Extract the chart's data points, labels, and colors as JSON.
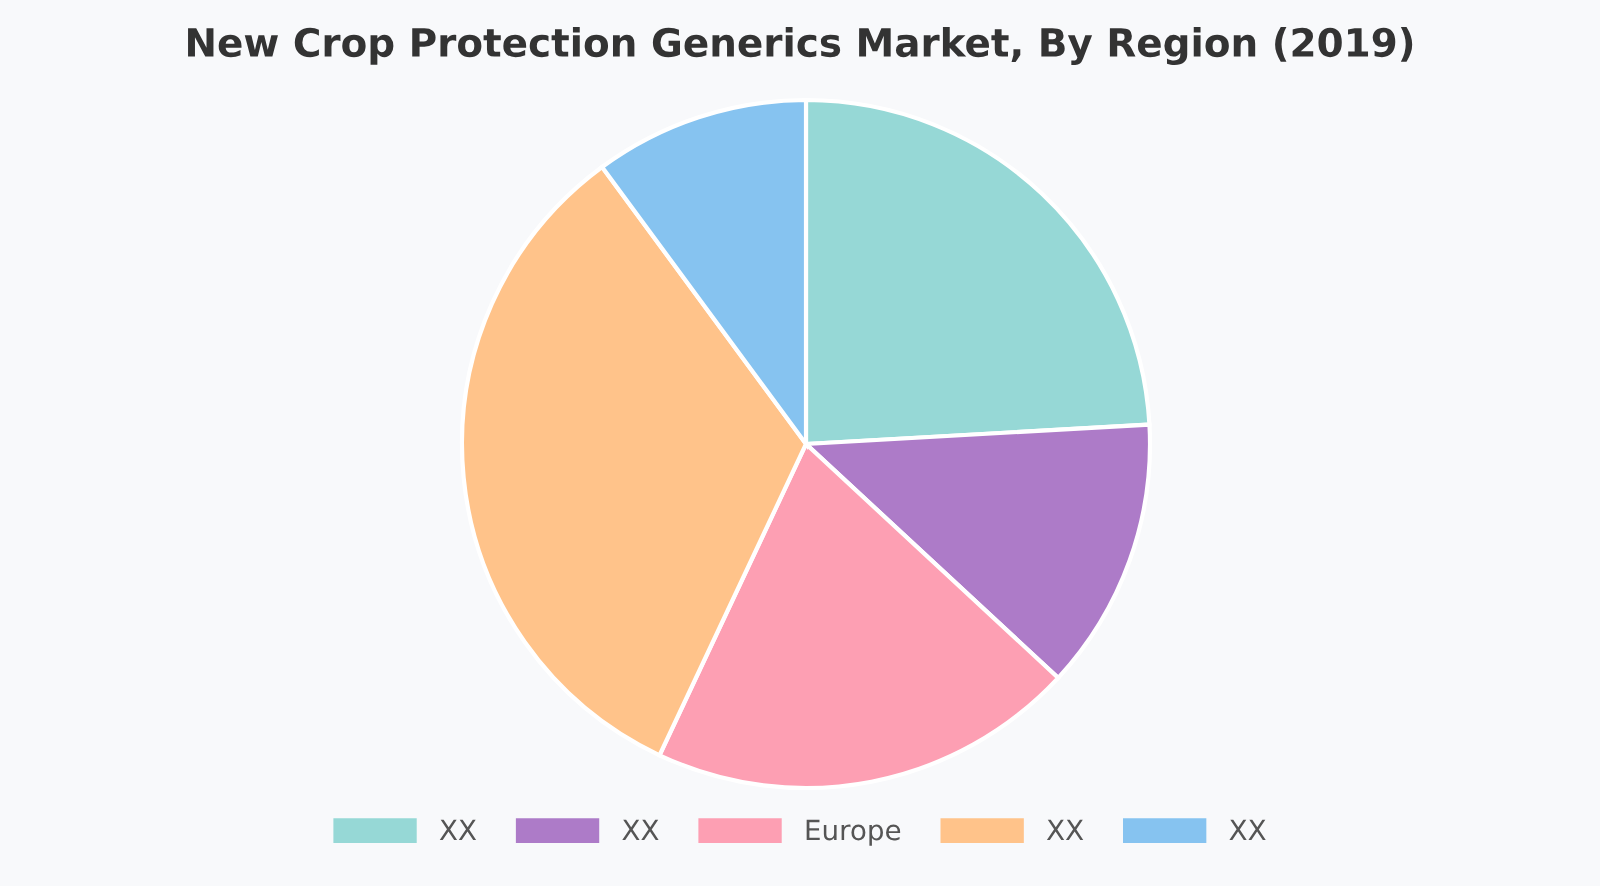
{
  "chart_data": {
    "type": "pie",
    "title": "New Crop Protection Generics Market, By Region (2019)",
    "categories": [
      "XX",
      "XX",
      "Europe",
      "XX",
      "XX"
    ],
    "values": [
      24.1,
      12.8,
      20.1,
      32.9,
      10.1
    ],
    "colors": [
      "#96d8d6",
      "#ad7bc8",
      "#fd9fb3",
      "#ffc38a",
      "#86c3f0"
    ],
    "legend": "bottom"
  }
}
